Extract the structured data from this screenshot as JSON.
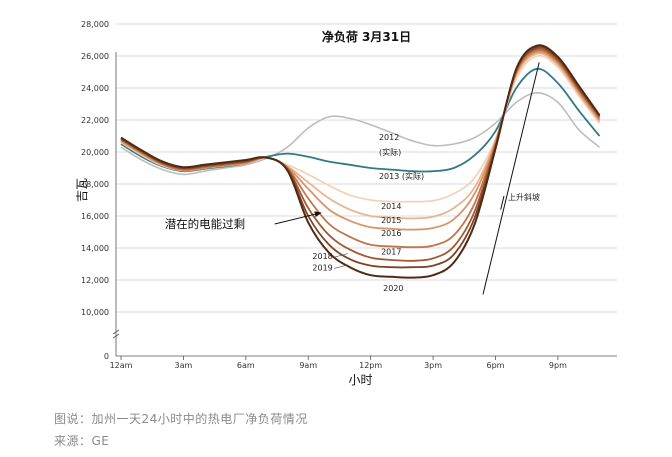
{
  "chart_data": {
    "type": "line",
    "title": "净负荷 3月31日",
    "xlabel": "小时",
    "ylabel": "吉瓦",
    "x_tick_labels": [
      "12am",
      "3am",
      "6am",
      "9am",
      "12pm",
      "3pm",
      "6pm",
      "9pm"
    ],
    "x_tick_hours": [
      0,
      3,
      6,
      9,
      12,
      15,
      18,
      21
    ],
    "y_ticks": [
      0,
      10000,
      12000,
      14000,
      16000,
      18000,
      20000,
      22000,
      24000,
      26000,
      28000
    ],
    "y_tick_labels": [
      "0",
      "10,000",
      "12,000",
      "14,000",
      "16,000",
      "18,000",
      "20,000",
      "22,000",
      "24,000",
      "26,000",
      "28,000"
    ],
    "ylim": [
      0,
      28000
    ],
    "axis_break": true,
    "grid": "horizontal",
    "x": [
      0,
      1,
      2,
      3,
      4,
      5,
      6,
      7,
      8,
      9,
      10,
      11,
      12,
      13,
      14,
      15,
      16,
      17,
      18,
      19,
      20,
      21,
      22,
      23
    ],
    "series": [
      {
        "name": "2012 (实际)",
        "color": "#bdbdbd",
        "width": 1.6,
        "values": [
          20300,
          19500,
          18900,
          18600,
          18800,
          19000,
          19200,
          19600,
          20300,
          21500,
          22200,
          22100,
          21700,
          21200,
          20700,
          20400,
          20500,
          20900,
          21800,
          23100,
          23700,
          23100,
          21400,
          20300
        ]
      },
      {
        "name": "2013 (实际)",
        "color": "#2f7a86",
        "width": 1.8,
        "values": [
          20500,
          19700,
          19100,
          18800,
          18950,
          19100,
          19300,
          19700,
          19900,
          19700,
          19400,
          19200,
          19000,
          18900,
          18800,
          18800,
          19000,
          19800,
          21300,
          24000,
          25200,
          24300,
          22600,
          21000
        ]
      },
      {
        "name": "2014",
        "color": "#f2d3b8",
        "width": 1.8,
        "values": [
          20600,
          19800,
          19150,
          18850,
          19000,
          19150,
          19300,
          19650,
          19200,
          18600,
          17900,
          17300,
          17000,
          16900,
          16900,
          16950,
          17400,
          18400,
          20800,
          24600,
          26000,
          25300,
          23500,
          21800
        ]
      },
      {
        "name": "2015",
        "color": "#e8b591",
        "width": 1.8,
        "values": [
          20650,
          19850,
          19200,
          18850,
          19000,
          19150,
          19300,
          19650,
          19100,
          18100,
          17100,
          16400,
          16000,
          15900,
          15850,
          15950,
          16500,
          17800,
          20700,
          24800,
          26150,
          25450,
          23650,
          21900
        ]
      },
      {
        "name": "2016",
        "color": "#d9946a",
        "width": 1.8,
        "values": [
          20700,
          19900,
          19200,
          18850,
          19000,
          19150,
          19300,
          19650,
          19050,
          17700,
          16400,
          15700,
          15300,
          15200,
          15150,
          15250,
          15800,
          17400,
          20600,
          24900,
          26250,
          25550,
          23750,
          22000
        ]
      },
      {
        "name": "2017",
        "color": "#c27548",
        "width": 1.8,
        "values": [
          20750,
          19950,
          19250,
          18900,
          19050,
          19200,
          19350,
          19650,
          19000,
          17100,
          15500,
          14700,
          14200,
          14100,
          14050,
          14150,
          14800,
          16800,
          20500,
          25000,
          26350,
          25650,
          23850,
          22100
        ]
      },
      {
        "name": "2018",
        "color": "#a05a32",
        "width": 1.8,
        "values": [
          20800,
          20000,
          19300,
          18950,
          19100,
          19250,
          19400,
          19650,
          18950,
          16500,
          14800,
          13900,
          13400,
          13250,
          13200,
          13350,
          14100,
          16300,
          20400,
          25100,
          26450,
          25750,
          23950,
          22200
        ]
      },
      {
        "name": "2019",
        "color": "#7e4322",
        "width": 1.8,
        "values": [
          20850,
          20050,
          19350,
          19000,
          19150,
          19300,
          19450,
          19650,
          18900,
          16000,
          14200,
          13300,
          12900,
          12800,
          12800,
          12900,
          13600,
          15900,
          20300,
          25150,
          26550,
          25850,
          24050,
          22250
        ]
      },
      {
        "name": "2020",
        "color": "#4e2a15",
        "width": 2.0,
        "values": [
          20900,
          20100,
          19400,
          19050,
          19200,
          19350,
          19500,
          19650,
          18850,
          15600,
          13700,
          12800,
          12300,
          12200,
          12150,
          12300,
          13100,
          15500,
          20200,
          25200,
          26650,
          25950,
          24150,
          22300
        ]
      }
    ],
    "annotations": [
      {
        "text": "2012",
        "x": 12.4,
        "y": 20750
      },
      {
        "text": "(实际)",
        "x": 12.4,
        "y": 19800
      },
      {
        "text": "2013 (实际)",
        "x": 12.4,
        "y": 18300
      },
      {
        "text": "2014",
        "x": 12.5,
        "y": 16450
      },
      {
        "text": "2015",
        "x": 12.5,
        "y": 15550
      },
      {
        "text": "2016",
        "x": 12.5,
        "y": 14750
      },
      {
        "text": "2017",
        "x": 12.5,
        "y": 13600
      },
      {
        "text": "2018",
        "x": 9.2,
        "y": 13300
      },
      {
        "text": "2019",
        "x": 9.2,
        "y": 12600
      },
      {
        "text": "2020",
        "x": 12.6,
        "y": 11300
      },
      {
        "text": "潜在的电能过剩",
        "x": 2.1,
        "y": 15250,
        "arrow_to": [
          9.6,
          16200
        ]
      },
      {
        "text": "上升斜坡",
        "x": 18.6,
        "y": 17000,
        "arrow_line": [
          [
            17.4,
            11100
          ],
          [
            20.1,
            25600
          ]
        ]
      }
    ]
  },
  "caption": {
    "line1": "图说：加州一天24小时中的热电厂净负荷情况",
    "line2": "来源：GE"
  }
}
